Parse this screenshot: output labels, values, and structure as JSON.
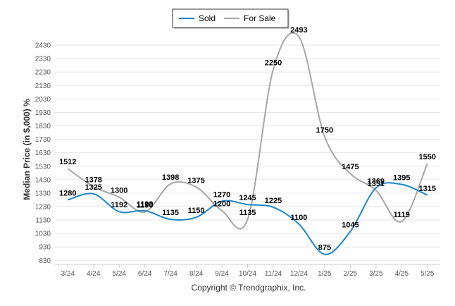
{
  "chart_data": {
    "type": "line",
    "categories": [
      "3/24",
      "4/24",
      "5/24",
      "6/24",
      "7/24",
      "8/24",
      "9/24",
      "10/24",
      "11/24",
      "12/24",
      "1/25",
      "2/25",
      "3/25",
      "4/25",
      "5/25"
    ],
    "series": [
      {
        "name": "Sold",
        "color": "#1f86c8",
        "values": [
          1280,
          1325,
          1192,
          1199,
          1135,
          1150,
          1270,
          1245,
          1225,
          1100,
          875,
          1045,
          1369,
          1395,
          1315
        ]
      },
      {
        "name": "For Sale",
        "color": "#a6a6a6",
        "values": [
          1512,
          1378,
          1300,
          1190,
          1398,
          1375,
          1200,
          1135,
          2250,
          2493,
          1750,
          1475,
          1351,
          1119,
          1550
        ]
      }
    ],
    "ylabel": "Median Price (in $,000) %",
    "yticks": [
      830,
      930,
      1030,
      1130,
      1230,
      1330,
      1430,
      1530,
      1630,
      1730,
      1830,
      1930,
      2030,
      2130,
      2230,
      2330,
      2430
    ],
    "ylim": [
      800,
      2530
    ],
    "grid": true,
    "legend": "top-center",
    "footer": "Copyright © Trendgraphix, Inc."
  }
}
